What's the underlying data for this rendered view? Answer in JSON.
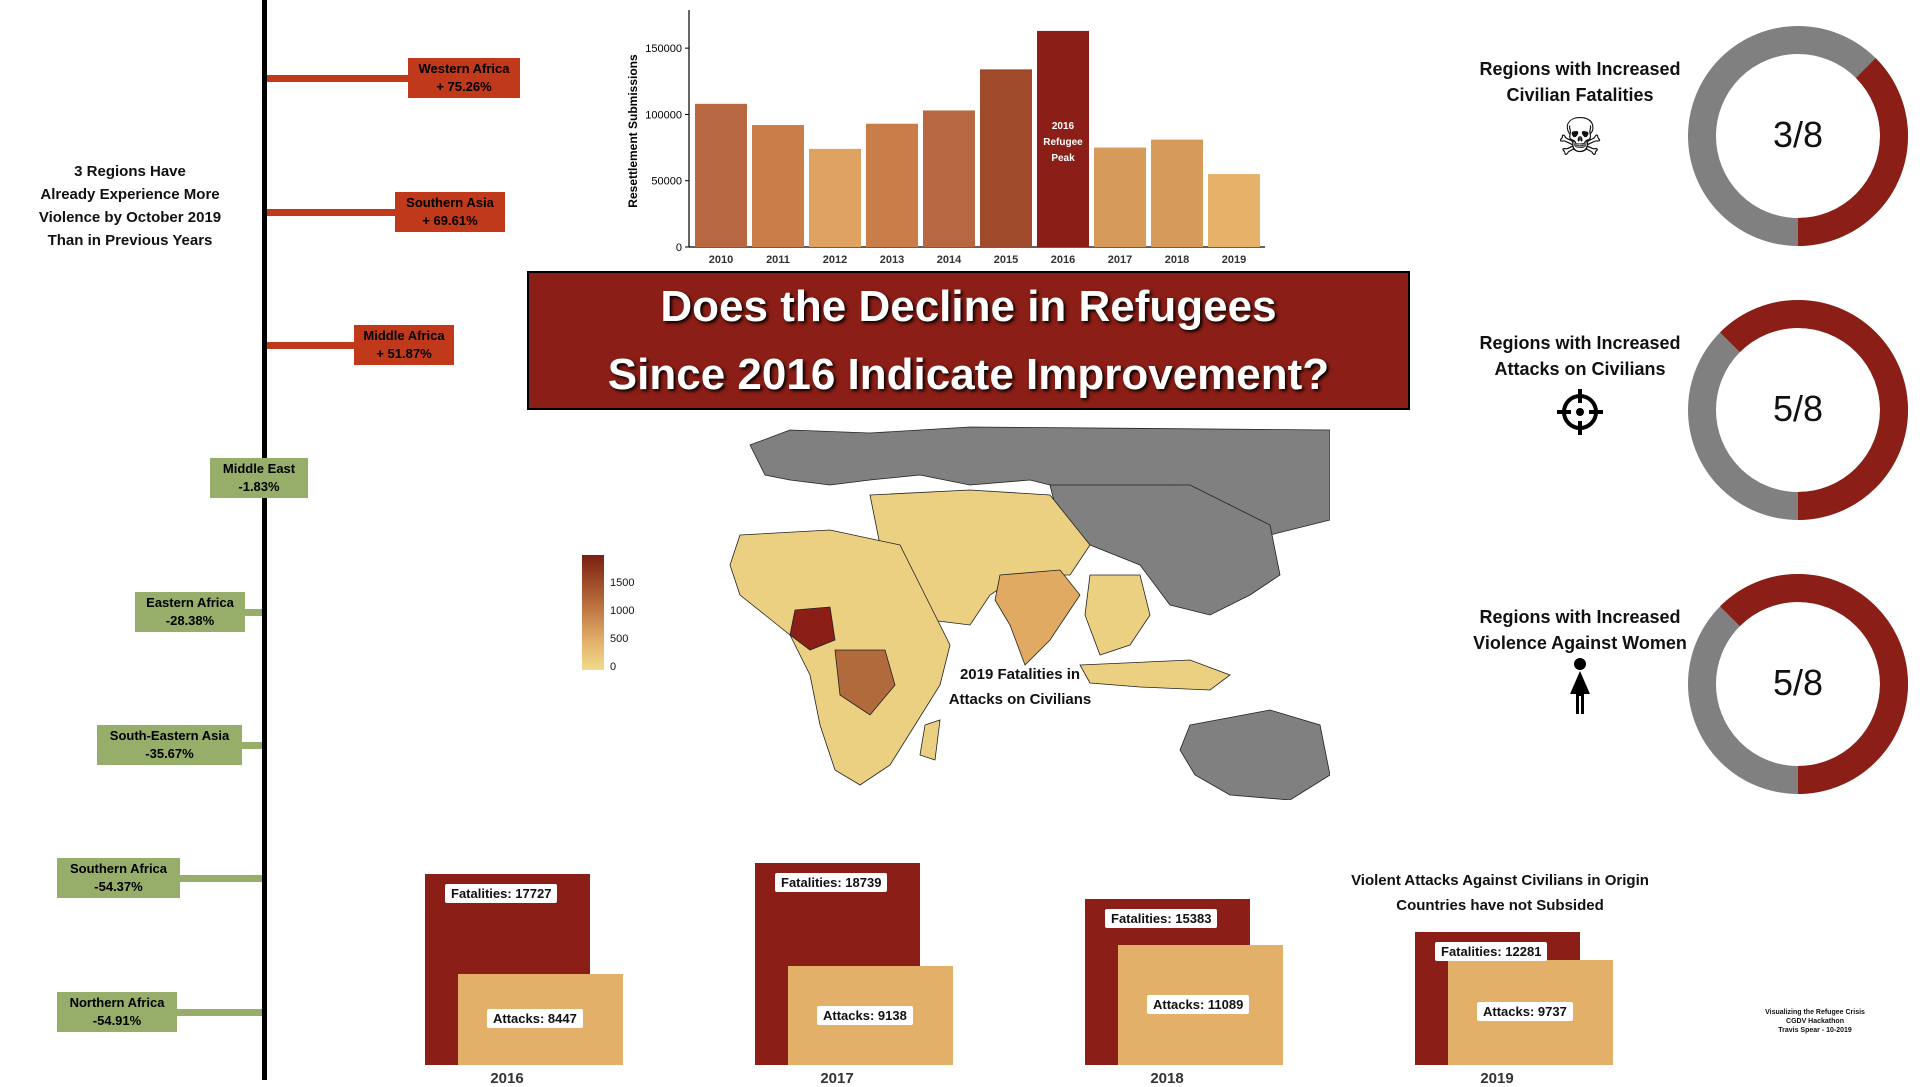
{
  "title": {
    "line1": "Does the Decline in Refugees",
    "line2": "Since 2016 Indicate Improvement?"
  },
  "colors": {
    "dark_red": "#8b1e16",
    "orange_red": "#c0391b",
    "green": "#97ae6b",
    "tan": "#e3b06a",
    "grey": "#808080"
  },
  "regions_note": [
    "3 Regions Have",
    "Already Experience More",
    "Violence by October 2019",
    "Than in Previous Years"
  ],
  "regions": [
    {
      "name": "Western Africa",
      "change": "+ 75.26%"
    },
    {
      "name": "Southern Asia",
      "change": "+ 69.61%"
    },
    {
      "name": "Middle Africa",
      "change": "+ 51.87%"
    },
    {
      "name": "Middle East",
      "change": "-1.83%"
    },
    {
      "name": "Eastern Africa",
      "change": "-28.38%"
    },
    {
      "name": "South-Eastern Asia",
      "change": "-35.67%"
    },
    {
      "name": "Southern Africa",
      "change": "-54.37%"
    },
    {
      "name": "Northern Africa",
      "change": "-54.91%"
    }
  ],
  "chart_data": [
    {
      "type": "bar",
      "categories": [
        "2010",
        "2011",
        "2012",
        "2013",
        "2014",
        "2015",
        "2016",
        "2017",
        "2018",
        "2019"
      ],
      "values": [
        108000,
        92000,
        74000,
        93000,
        103000,
        134000,
        163000,
        75000,
        81000,
        55000
      ],
      "ylabel": "Resettlement Submissions",
      "ylim": [
        0,
        175000
      ],
      "yticks": [
        0,
        50000,
        100000,
        150000
      ],
      "annotation": {
        "category": "2016",
        "lines": [
          "2016",
          "Refugee",
          "Peak"
        ]
      }
    },
    {
      "type": "bar",
      "title": "Violent Attacks Against Civilians in Origin Countries have not Subsided",
      "categories": [
        "2016",
        "2017",
        "2018",
        "2019"
      ],
      "series": [
        {
          "name": "Fatalities",
          "values": [
            17727,
            18739,
            15383,
            12281
          ]
        },
        {
          "name": "Attacks",
          "values": [
            8447,
            9138,
            11089,
            9737
          ]
        }
      ]
    },
    {
      "type": "pie",
      "donuts": [
        {
          "title": "Regions with Increased Civilian Fatalities",
          "label": "3/8",
          "value": 3,
          "total": 8,
          "icon": "skull-crossbones-icon"
        },
        {
          "title": "Regions with Increased Attacks on Civilians",
          "label": "5/8",
          "value": 5,
          "total": 8,
          "icon": "crosshair-icon"
        },
        {
          "title": "Regions with Increased Violence Against Women",
          "label": "5/8",
          "value": 5,
          "total": 8,
          "icon": "woman-icon"
        }
      ]
    }
  ],
  "map": {
    "title_line1": "2019 Fatalities in",
    "title_line2": "Attacks on Civilians",
    "legend_ticks": [
      "1500",
      "1000",
      "500",
      "0"
    ]
  },
  "credits": [
    "Visualizing the Refugee Crisis",
    "CGDV Hackathon",
    "Travis Spear - 10-2019"
  ]
}
